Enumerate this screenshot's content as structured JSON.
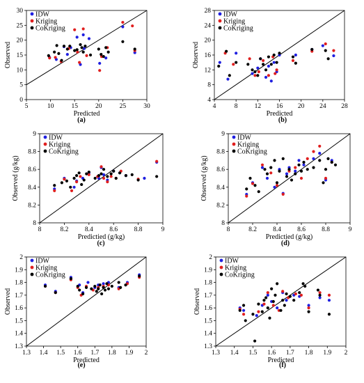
{
  "colors": {
    "IDW": "#1f1fe0",
    "Kriging": "#e01f1f",
    "CoKriging": "#000000"
  },
  "chart_data": [
    {
      "type": "scatter",
      "label": "(a)",
      "xlabel": "Predicted",
      "ylabel": "Observed",
      "xlim": [
        5,
        30
      ],
      "ylim": [
        0,
        30
      ],
      "xticks": [
        5,
        10,
        15,
        20,
        25,
        30
      ],
      "yticks": [
        0,
        5,
        10,
        15,
        20,
        25,
        30
      ],
      "legend": [
        "IDW",
        "Kriging",
        "CoKriging"
      ],
      "legend_position": "top-left",
      "reference_line": "1:1",
      "series": [
        {
          "name": "IDW",
          "x": [
            9.8,
            11.2,
            12.8,
            13.5,
            14.2,
            15.5,
            16.2,
            16.8,
            17.0,
            18.0,
            20.2,
            21.5,
            25.0,
            27.5
          ],
          "y": [
            14.2,
            13.5,
            17.8,
            15.2,
            17.5,
            21.0,
            11.8,
            21.8,
            17.2,
            20.5,
            12.2,
            14.0,
            24.5,
            15.8
          ]
        },
        {
          "name": "Kriging",
          "x": [
            9.8,
            11.0,
            12.2,
            13.8,
            15.0,
            15.6,
            16.0,
            16.8,
            17.5,
            20.2,
            20.6,
            21.8,
            25.0,
            27.0,
            27.5
          ],
          "y": [
            14.0,
            14.2,
            12.8,
            17.2,
            23.5,
            16.0,
            12.5,
            23.8,
            14.8,
            9.8,
            14.5,
            17.5,
            26.0,
            24.8,
            16.5
          ]
        },
        {
          "name": "CoKriging",
          "x": [
            9.6,
            10.8,
            11.3,
            11.7,
            12.3,
            12.8,
            13.5,
            14.0,
            15.0,
            15.5,
            16.2,
            16.5,
            16.8,
            17.2,
            18.3,
            20.0,
            20.5,
            21.0,
            21.5,
            22.0,
            25.0,
            27.5
          ],
          "y": [
            14.8,
            16.0,
            18.2,
            15.5,
            13.2,
            18.0,
            17.0,
            18.0,
            16.5,
            16.8,
            18.5,
            17.5,
            16.0,
            18.0,
            15.0,
            17.0,
            15.2,
            14.5,
            17.5,
            16.0,
            19.5,
            17.0
          ]
        }
      ]
    },
    {
      "type": "scatter",
      "label": "(b)",
      "xlabel": "Predicted",
      "ylabel": "Observed",
      "xlim": [
        4,
        28
      ],
      "ylim": [
        4,
        28
      ],
      "xticks": [
        4,
        8,
        12,
        16,
        20,
        24,
        28
      ],
      "yticks": [
        4,
        8,
        12,
        16,
        20,
        24,
        28
      ],
      "legend": [
        "IDW",
        "Kriging",
        "CoKriging"
      ],
      "legend_position": "top-left",
      "reference_line": "1:1",
      "series": [
        {
          "name": "IDW",
          "x": [
            5.0,
            6.5,
            8.0,
            11.0,
            12.0,
            12.5,
            13.5,
            14.0,
            14.5,
            15.0,
            15.5,
            16.0,
            19.0,
            22.0,
            24.0,
            26.0
          ],
          "y": [
            14.0,
            9.5,
            16.5,
            11.0,
            12.5,
            15.0,
            10.0,
            13.0,
            9.0,
            14.0,
            11.5,
            16.0,
            16.0,
            17.5,
            18.5,
            15.8
          ]
        },
        {
          "name": "Kriging",
          "x": [
            6.0,
            7.5,
            10.5,
            11.5,
            12.2,
            13.0,
            14.0,
            14.8,
            15.2,
            15.5,
            18.5,
            22.0,
            24.5,
            26.0
          ],
          "y": [
            16.5,
            13.5,
            15.0,
            10.5,
            11.5,
            14.5,
            10.5,
            15.5,
            11.0,
            12.0,
            14.5,
            17.0,
            19.0,
            17.2
          ]
        },
        {
          "name": "CoKriging",
          "x": [
            4.8,
            6.2,
            6.8,
            8.0,
            10.2,
            11.0,
            11.5,
            12.0,
            12.5,
            13.0,
            13.5,
            14.0,
            14.5,
            15.0,
            15.5,
            16.0,
            18.5,
            19.0,
            22.0,
            24.5,
            25.0
          ],
          "y": [
            13.0,
            17.0,
            10.5,
            14.0,
            13.5,
            12.0,
            11.5,
            10.5,
            15.0,
            13.5,
            12.0,
            15.5,
            13.5,
            16.0,
            14.0,
            16.5,
            15.5,
            13.8,
            17.5,
            17.2,
            15.0
          ]
        }
      ]
    },
    {
      "type": "scatter",
      "label": "(c)",
      "xlabel": "Predictied (g/kg)",
      "ylabel": "Observed (g/kg)",
      "xlim": [
        8,
        9
      ],
      "ylim": [
        8,
        9
      ],
      "xticks": [
        8,
        8.2,
        8.4,
        8.6,
        8.8,
        9
      ],
      "yticks": [
        8,
        8.2,
        8.4,
        8.6,
        8.8,
        9
      ],
      "legend": [
        "IDW",
        "Kriging",
        "CoKriging"
      ],
      "legend_position": "top-left",
      "reference_line": "1:1",
      "series": [
        {
          "name": "IDW",
          "x": [
            8.12,
            8.2,
            8.28,
            8.3,
            8.35,
            8.4,
            8.48,
            8.5,
            8.52,
            8.55,
            8.6,
            8.65,
            8.7,
            8.85,
            8.95
          ],
          "y": [
            8.38,
            8.5,
            8.4,
            8.47,
            8.5,
            8.56,
            8.5,
            8.62,
            8.54,
            8.48,
            8.58,
            8.56,
            8.53,
            8.5,
            8.68
          ]
        },
        {
          "name": "Kriging",
          "x": [
            8.12,
            8.2,
            8.26,
            8.3,
            8.33,
            8.4,
            8.47,
            8.5,
            8.52,
            8.55,
            8.58,
            8.62,
            8.66,
            8.8,
            8.95
          ],
          "y": [
            8.36,
            8.49,
            8.36,
            8.46,
            8.52,
            8.54,
            8.52,
            8.63,
            8.5,
            8.46,
            8.52,
            8.5,
            8.58,
            8.49,
            8.69
          ]
        },
        {
          "name": "CoKriging",
          "x": [
            8.12,
            8.18,
            8.22,
            8.25,
            8.28,
            8.3,
            8.32,
            8.34,
            8.36,
            8.38,
            8.4,
            8.45,
            8.48,
            8.5,
            8.52,
            8.55,
            8.58,
            8.6,
            8.62,
            8.65,
            8.7,
            8.75,
            8.8,
            8.95
          ],
          "y": [
            8.42,
            8.45,
            8.47,
            8.4,
            8.5,
            8.53,
            8.56,
            8.43,
            8.48,
            8.55,
            8.57,
            8.5,
            8.53,
            8.55,
            8.6,
            8.52,
            8.55,
            8.58,
            8.5,
            8.56,
            8.53,
            8.54,
            8.48,
            8.52
          ]
        }
      ]
    },
    {
      "type": "scatter",
      "label": "(d)",
      "xlabel": "Predictied (g/kg)",
      "ylabel": "Observed (g/kg)",
      "xlim": [
        8,
        9
      ],
      "ylim": [
        8,
        9
      ],
      "xticks": [
        8,
        8.2,
        8.4,
        8.6,
        8.8,
        9
      ],
      "yticks": [
        8,
        8.2,
        8.4,
        8.6,
        8.8,
        9
      ],
      "legend": [
        "IDW",
        "Kriging",
        "CoKriging"
      ],
      "legend_position": "top-left",
      "reference_line": "1:1",
      "series": [
        {
          "name": "IDW",
          "x": [
            8.15,
            8.2,
            8.28,
            8.32,
            8.38,
            8.42,
            8.45,
            8.48,
            8.5,
            8.55,
            8.58,
            8.62,
            8.7,
            8.75,
            8.8,
            8.85
          ],
          "y": [
            8.32,
            8.45,
            8.62,
            8.5,
            8.4,
            8.6,
            8.33,
            8.55,
            8.62,
            8.58,
            8.7,
            8.65,
            8.72,
            8.78,
            8.48,
            8.7
          ]
        },
        {
          "name": "Kriging",
          "x": [
            8.15,
            8.2,
            8.28,
            8.35,
            8.4,
            8.45,
            8.5,
            8.55,
            8.6,
            8.65,
            8.7,
            8.75,
            8.8,
            8.85
          ],
          "y": [
            8.3,
            8.44,
            8.65,
            8.56,
            8.42,
            8.32,
            8.58,
            8.62,
            8.5,
            8.72,
            8.8,
            8.86,
            8.5,
            8.68
          ]
        },
        {
          "name": "CoKriging",
          "x": [
            8.15,
            8.18,
            8.22,
            8.25,
            8.3,
            8.32,
            8.35,
            8.38,
            8.4,
            8.42,
            8.45,
            8.48,
            8.5,
            8.52,
            8.55,
            8.58,
            8.6,
            8.62,
            8.65,
            8.7,
            8.75,
            8.78,
            8.8,
            8.82,
            8.85,
            8.88
          ],
          "y": [
            8.38,
            8.5,
            8.42,
            8.35,
            8.6,
            8.55,
            8.62,
            8.7,
            8.45,
            8.58,
            8.72,
            8.52,
            8.6,
            8.48,
            8.55,
            8.65,
            8.58,
            8.68,
            8.6,
            8.62,
            8.7,
            8.45,
            8.6,
            8.72,
            8.68,
            8.65
          ]
        }
      ]
    },
    {
      "type": "scatter",
      "label": "(e)",
      "xlabel": "Predicted",
      "ylabel": "Observed",
      "xlim": [
        1.3,
        2
      ],
      "ylim": [
        1.3,
        2
      ],
      "xticks": [
        1.3,
        1.4,
        1.5,
        1.6,
        1.7,
        1.8,
        1.9,
        2
      ],
      "yticks": [
        1.3,
        1.4,
        1.5,
        1.6,
        1.7,
        1.8,
        1.9,
        2
      ],
      "legend": [
        "IDW",
        "Kriging",
        "CoKriging"
      ],
      "legend_position": "top-left",
      "reference_line": "1:1",
      "series": [
        {
          "name": "IDW",
          "x": [
            1.41,
            1.47,
            1.56,
            1.61,
            1.63,
            1.66,
            1.7,
            1.72,
            1.75,
            1.78,
            1.84,
            1.89,
            1.96
          ],
          "y": [
            1.78,
            1.73,
            1.84,
            1.78,
            1.72,
            1.8,
            1.76,
            1.78,
            1.79,
            1.8,
            1.76,
            1.8,
            1.86
          ]
        },
        {
          "name": "Kriging",
          "x": [
            1.41,
            1.47,
            1.56,
            1.6,
            1.62,
            1.65,
            1.69,
            1.72,
            1.75,
            1.78,
            1.84,
            1.89,
            1.96
          ],
          "y": [
            1.77,
            1.72,
            1.82,
            1.76,
            1.7,
            1.77,
            1.74,
            1.76,
            1.77,
            1.78,
            1.75,
            1.79,
            1.84
          ]
        },
        {
          "name": "CoKriging",
          "x": [
            1.41,
            1.47,
            1.56,
            1.6,
            1.61,
            1.63,
            1.65,
            1.68,
            1.7,
            1.71,
            1.72,
            1.73,
            1.74,
            1.75,
            1.76,
            1.77,
            1.78,
            1.8,
            1.84,
            1.85,
            1.88,
            1.96
          ],
          "y": [
            1.77,
            1.72,
            1.83,
            1.77,
            1.74,
            1.71,
            1.76,
            1.75,
            1.77,
            1.73,
            1.75,
            1.78,
            1.71,
            1.76,
            1.74,
            1.79,
            1.75,
            1.77,
            1.8,
            1.76,
            1.78,
            1.85
          ]
        }
      ]
    },
    {
      "type": "scatter",
      "label": "(f)",
      "xlabel": "Predicted",
      "ylabel": "Observed",
      "xlim": [
        1.3,
        2
      ],
      "ylim": [
        1.3,
        2
      ],
      "xticks": [
        1.3,
        1.4,
        1.5,
        1.6,
        1.7,
        1.8,
        1.9,
        2
      ],
      "yticks": [
        1.3,
        1.4,
        1.5,
        1.6,
        1.7,
        1.8,
        1.9,
        2
      ],
      "legend": [
        "IDW",
        "Kriging",
        "CoKriging"
      ],
      "legend_position": "top-left",
      "reference_line": "1:1",
      "series": [
        {
          "name": "IDW",
          "x": [
            1.43,
            1.45,
            1.52,
            1.55,
            1.58,
            1.6,
            1.63,
            1.66,
            1.68,
            1.72,
            1.75,
            1.8,
            1.86,
            1.91
          ],
          "y": [
            1.6,
            1.58,
            1.54,
            1.62,
            1.7,
            1.65,
            1.6,
            1.72,
            1.66,
            1.7,
            1.69,
            1.62,
            1.68,
            1.66
          ]
        },
        {
          "name": "Kriging",
          "x": [
            1.43,
            1.45,
            1.53,
            1.56,
            1.58,
            1.61,
            1.64,
            1.66,
            1.69,
            1.73,
            1.76,
            1.8,
            1.86,
            1.91
          ],
          "y": [
            1.59,
            1.55,
            1.57,
            1.63,
            1.72,
            1.62,
            1.58,
            1.73,
            1.68,
            1.71,
            1.7,
            1.6,
            1.72,
            1.7
          ]
        },
        {
          "name": "CoKriging",
          "x": [
            1.43,
            1.45,
            1.46,
            1.5,
            1.51,
            1.53,
            1.55,
            1.56,
            1.57,
            1.58,
            1.59,
            1.6,
            1.61,
            1.62,
            1.63,
            1.65,
            1.66,
            1.67,
            1.68,
            1.7,
            1.72,
            1.75,
            1.77,
            1.78,
            1.8,
            1.85,
            1.86,
            1.91
          ],
          "y": [
            1.58,
            1.62,
            1.5,
            1.55,
            1.34,
            1.63,
            1.57,
            1.66,
            1.68,
            1.6,
            1.52,
            1.75,
            1.65,
            1.7,
            1.79,
            1.58,
            1.66,
            1.62,
            1.71,
            1.69,
            1.66,
            1.72,
            1.79,
            1.77,
            1.57,
            1.74,
            1.7,
            1.55
          ]
        }
      ]
    }
  ]
}
